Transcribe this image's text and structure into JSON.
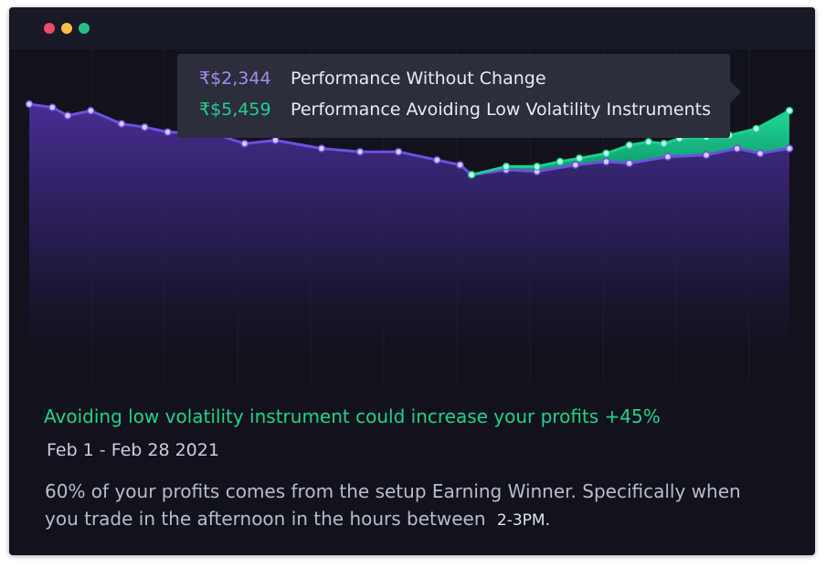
{
  "window": {
    "controls": [
      "close",
      "minimize",
      "maximize"
    ]
  },
  "tooltip": {
    "rows": [
      {
        "value": "₹$2,344",
        "label": "Performance Without Change",
        "color": "#a88cf0"
      },
      {
        "value": "₹$5,459",
        "label": "Performance Avoiding Low Volatility Instruments",
        "color": "#22d18f"
      }
    ]
  },
  "headline": "Avoiding low volatility instrument could increase your profits +45%",
  "date_range": "Feb 1 - Feb 28 2021",
  "description": {
    "text": "60% of your profits comes from the setup Earning Winner. Specifically when you trade in the afternoon in the hours between",
    "time_range": "2-3PM."
  },
  "colors": {
    "background": "#11121b",
    "purple_series": "#6e4fe0",
    "green_series": "#19d18f",
    "accent_text": "#22d18f"
  },
  "chart_data": {
    "type": "area",
    "title": "",
    "xlabel": "",
    "ylabel": "",
    "ylim": [
      0,
      100
    ],
    "grid": "vertical",
    "series": [
      {
        "name": "Performance Without Change",
        "color": "#6e4fe0",
        "points": [
          [
            0,
            100
          ],
          [
            3,
            98
          ],
          [
            5,
            93
          ],
          [
            8,
            96
          ],
          [
            12,
            88
          ],
          [
            15,
            86
          ],
          [
            18,
            83
          ],
          [
            24,
            82
          ],
          [
            28,
            76
          ],
          [
            32,
            78
          ],
          [
            38,
            73
          ],
          [
            43,
            71
          ],
          [
            48,
            71
          ],
          [
            53,
            66
          ],
          [
            56,
            63
          ],
          [
            57.5,
            57
          ],
          [
            62,
            60
          ],
          [
            66,
            59
          ],
          [
            71,
            63
          ],
          [
            75,
            65
          ],
          [
            78,
            64
          ],
          [
            83,
            68
          ],
          [
            88,
            69
          ],
          [
            92,
            73
          ],
          [
            95,
            70
          ],
          [
            98.8,
            73
          ]
        ]
      },
      {
        "name": "Performance Avoiding Low Volatility Instruments",
        "color": "#19d18f",
        "points": [
          [
            57.5,
            57
          ],
          [
            62,
            62
          ],
          [
            66,
            62
          ],
          [
            69,
            65
          ],
          [
            71.5,
            67
          ],
          [
            75,
            70
          ],
          [
            78,
            75
          ],
          [
            80.5,
            77
          ],
          [
            82.5,
            76
          ],
          [
            84.5,
            79
          ],
          [
            88,
            80
          ],
          [
            91,
            81
          ],
          [
            94.5,
            85
          ],
          [
            98.8,
            96
          ]
        ]
      }
    ]
  }
}
